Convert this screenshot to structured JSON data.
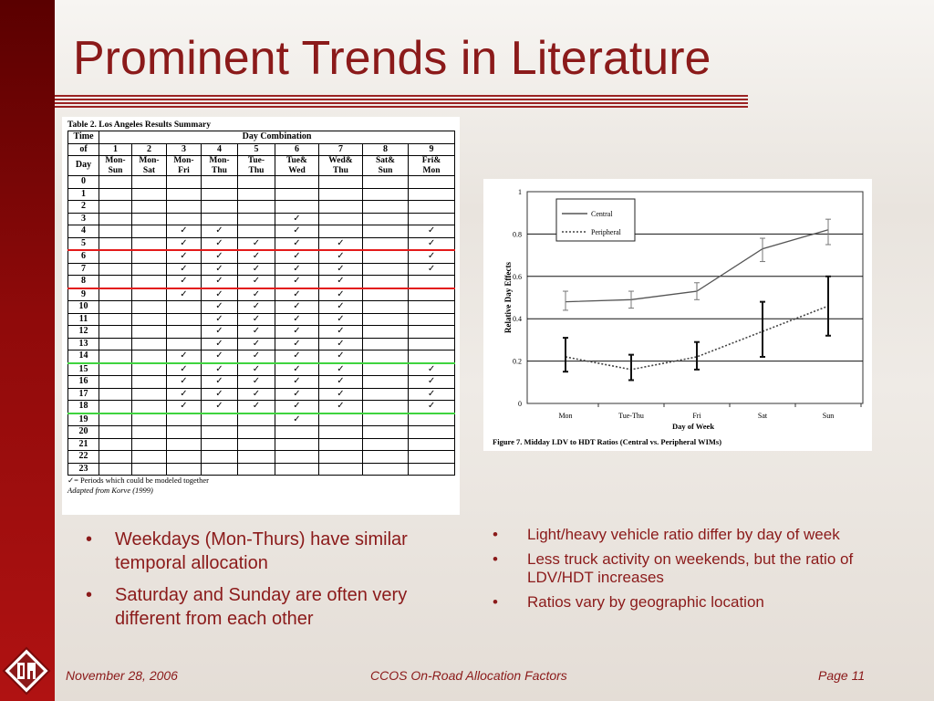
{
  "slide": {
    "title": "Prominent Trends in Literature",
    "colors": {
      "accent": "#8b1a1a",
      "left_bar": "#8f0a0a",
      "red_line": "#e31919",
      "green_line": "#3fd43f"
    }
  },
  "table": {
    "caption": "Table 2. Los Angeles Results Summary",
    "header_time": [
      "Time",
      "of",
      "Day"
    ],
    "header_group": "Day Combination",
    "columns": [
      {
        "num": "1",
        "top": "Mon-",
        "bottom": "Sun"
      },
      {
        "num": "2",
        "top": "Mon-",
        "bottom": "Sat"
      },
      {
        "num": "3",
        "top": "Mon-",
        "bottom": "Fri"
      },
      {
        "num": "4",
        "top": "Mon-",
        "bottom": "Thu"
      },
      {
        "num": "5",
        "top": "Tue-",
        "bottom": "Thu"
      },
      {
        "num": "6",
        "top": "Tue&",
        "bottom": "Wed"
      },
      {
        "num": "7",
        "top": "Wed&",
        "bottom": "Thu"
      },
      {
        "num": "8",
        "top": "Sat&",
        "bottom": "Sun"
      },
      {
        "num": "9",
        "top": "Fri&",
        "bottom": "Mon"
      }
    ],
    "check_symbol": "✓",
    "rows": [
      {
        "hour": "0",
        "checks": [
          0,
          0,
          0,
          0,
          0,
          0,
          0,
          0,
          0
        ]
      },
      {
        "hour": "1",
        "checks": [
          0,
          0,
          0,
          0,
          0,
          0,
          0,
          0,
          0
        ]
      },
      {
        "hour": "2",
        "checks": [
          0,
          0,
          0,
          0,
          0,
          0,
          0,
          0,
          0
        ]
      },
      {
        "hour": "3",
        "checks": [
          0,
          0,
          0,
          0,
          0,
          1,
          0,
          0,
          0
        ]
      },
      {
        "hour": "4",
        "checks": [
          0,
          0,
          1,
          1,
          0,
          1,
          0,
          0,
          1
        ]
      },
      {
        "hour": "5",
        "checks": [
          0,
          0,
          1,
          1,
          1,
          1,
          1,
          0,
          1
        ],
        "line": "red"
      },
      {
        "hour": "6",
        "checks": [
          0,
          0,
          1,
          1,
          1,
          1,
          1,
          0,
          1
        ]
      },
      {
        "hour": "7",
        "checks": [
          0,
          0,
          1,
          1,
          1,
          1,
          1,
          0,
          1
        ]
      },
      {
        "hour": "8",
        "checks": [
          0,
          0,
          1,
          1,
          1,
          1,
          1,
          0,
          0
        ],
        "line": "red"
      },
      {
        "hour": "9",
        "checks": [
          0,
          0,
          1,
          1,
          1,
          1,
          1,
          0,
          0
        ]
      },
      {
        "hour": "10",
        "checks": [
          0,
          0,
          0,
          1,
          1,
          1,
          1,
          0,
          0
        ]
      },
      {
        "hour": "11",
        "checks": [
          0,
          0,
          0,
          1,
          1,
          1,
          1,
          0,
          0
        ]
      },
      {
        "hour": "12",
        "checks": [
          0,
          0,
          0,
          1,
          1,
          1,
          1,
          0,
          0
        ]
      },
      {
        "hour": "13",
        "checks": [
          0,
          0,
          0,
          1,
          1,
          1,
          1,
          0,
          0
        ]
      },
      {
        "hour": "14",
        "checks": [
          0,
          0,
          1,
          1,
          1,
          1,
          1,
          0,
          0
        ],
        "line": "green"
      },
      {
        "hour": "15",
        "checks": [
          0,
          0,
          1,
          1,
          1,
          1,
          1,
          0,
          1
        ]
      },
      {
        "hour": "16",
        "checks": [
          0,
          0,
          1,
          1,
          1,
          1,
          1,
          0,
          1
        ]
      },
      {
        "hour": "17",
        "checks": [
          0,
          0,
          1,
          1,
          1,
          1,
          1,
          0,
          1
        ]
      },
      {
        "hour": "18",
        "checks": [
          0,
          0,
          1,
          1,
          1,
          1,
          1,
          0,
          1
        ],
        "line": "green"
      },
      {
        "hour": "19",
        "checks": [
          0,
          0,
          0,
          0,
          0,
          1,
          0,
          0,
          0
        ]
      },
      {
        "hour": "20",
        "checks": [
          0,
          0,
          0,
          0,
          0,
          0,
          0,
          0,
          0
        ]
      },
      {
        "hour": "21",
        "checks": [
          0,
          0,
          0,
          0,
          0,
          0,
          0,
          0,
          0
        ]
      },
      {
        "hour": "22",
        "checks": [
          0,
          0,
          0,
          0,
          0,
          0,
          0,
          0,
          0
        ]
      },
      {
        "hour": "23",
        "checks": [
          0,
          0,
          0,
          0,
          0,
          0,
          0,
          0,
          0
        ]
      }
    ],
    "note": "✓= Periods which could be modeled together",
    "source": "Adapted from Korve (1999)"
  },
  "chart_data": {
    "type": "line",
    "categories": [
      "Mon",
      "Tue-Thu",
      "Fri",
      "Sat",
      "Sun"
    ],
    "series": [
      {
        "name": "Central",
        "values": [
          0.48,
          0.49,
          0.53,
          0.73,
          0.82
        ],
        "err_low": [
          0.44,
          0.45,
          0.49,
          0.67,
          0.75
        ],
        "err_high": [
          0.53,
          0.53,
          0.57,
          0.78,
          0.87
        ],
        "style": "solid",
        "color": "#555555"
      },
      {
        "name": "Peripheral",
        "values": [
          0.22,
          0.16,
          0.22,
          0.34,
          0.46
        ],
        "err_low": [
          0.15,
          0.11,
          0.16,
          0.22,
          0.32
        ],
        "err_high": [
          0.31,
          0.23,
          0.29,
          0.48,
          0.6
        ],
        "style": "dotted",
        "color": "#444444"
      }
    ],
    "ylabel": "Relative Day Effects",
    "xlabel": "Day of Week",
    "ylim": [
      0,
      1
    ],
    "yticks": [
      "0",
      "0.2",
      "0.4",
      "0.6",
      "0.8",
      "1"
    ],
    "grid": true,
    "legend_position": "top-left",
    "caption": "Figure 7. Midday LDV to HDT Ratios (Central vs. Peripheral WIMs)"
  },
  "bullets_left": [
    "Weekdays (Mon-Thurs) have similar temporal allocation",
    "Saturday and Sunday are often very different from each other"
  ],
  "bullets_right": [
    "Light/heavy vehicle ratio differ by day of week",
    "Less truck activity on weekends, but the ratio of LDV/HDT increases",
    "Ratios vary by geographic location"
  ],
  "footer": {
    "date": "November 28, 2006",
    "center": "CCOS On-Road Allocation Factors",
    "page": "Page 11"
  }
}
